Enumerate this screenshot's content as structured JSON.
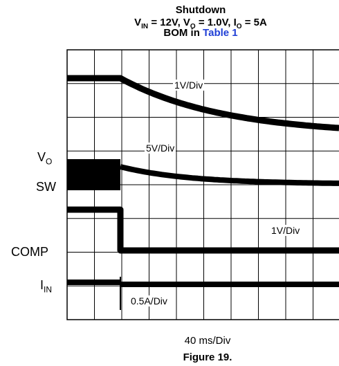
{
  "title": {
    "line1": "Shutdown",
    "vin_label": "V",
    "vin_sub": "IN",
    "vin_value": " = 12V, ",
    "vo_label": "V",
    "vo_sub": "O",
    "vo_value": " = 1.0V, ",
    "io_label": "I",
    "io_sub": "O",
    "io_value": " = 5A",
    "bom_prefix": "BOM in ",
    "bom_link": "Table 1"
  },
  "colors": {
    "link": "#1f3fd6",
    "trace": "#000000",
    "grid": "#000000"
  },
  "chart_data": {
    "type": "line",
    "grid": {
      "divisions_x": 10,
      "divisions_y": 8,
      "visible": true
    },
    "x_scale": "40 ms/Div",
    "series": [
      {
        "name": "V",
        "sub": "O",
        "scale": "1V/Div"
      },
      {
        "name": "SW",
        "scale": "5V/Div"
      },
      {
        "name": "COMP",
        "scale": "1V/Div"
      },
      {
        "name": "I",
        "sub": "IN",
        "scale": "0.5A/Div"
      }
    ]
  },
  "timebase": "40 ms/Div",
  "caption": "Figure 19."
}
